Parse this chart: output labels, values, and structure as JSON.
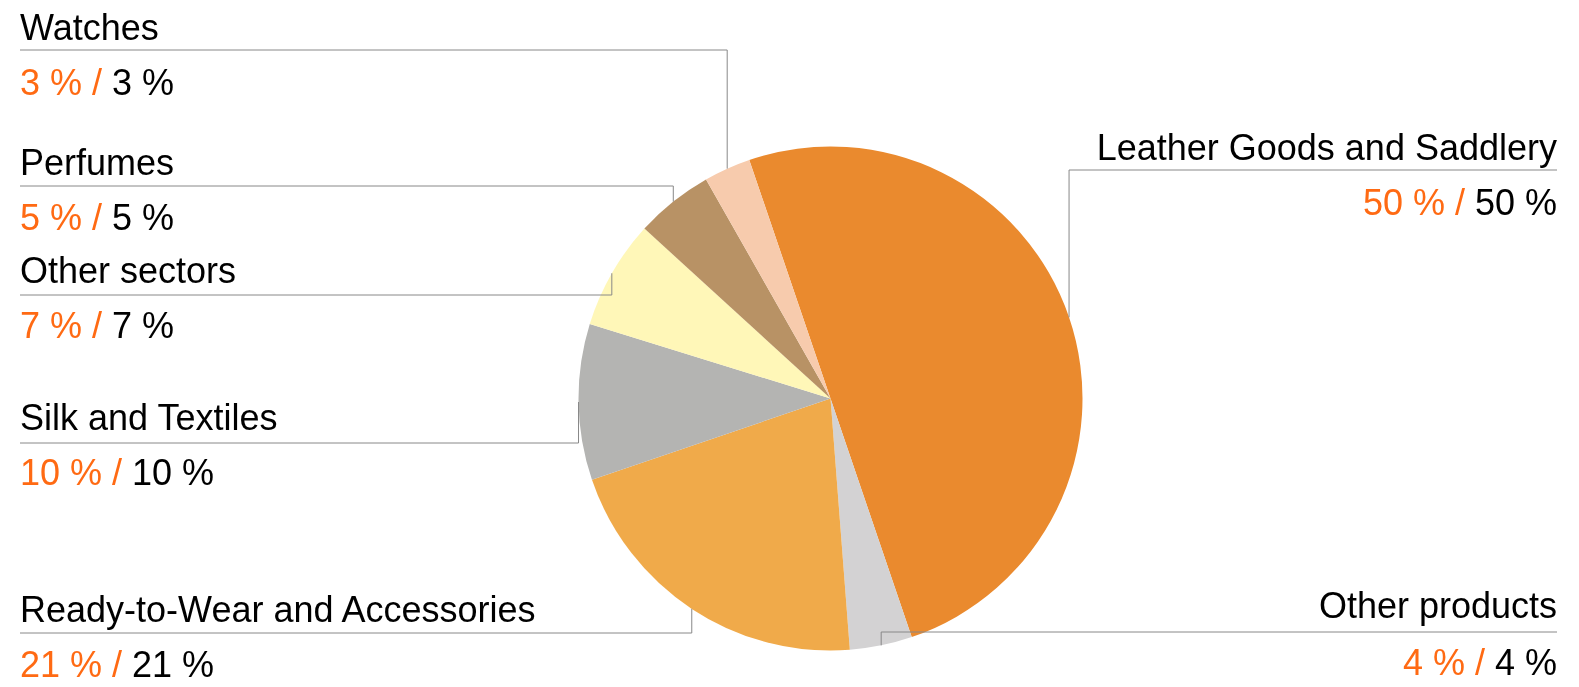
{
  "chart_data": {
    "type": "pie",
    "categories": [
      "Leather Goods and Saddlery",
      "Other products",
      "Ready-to-Wear and Accessories",
      "Silk and Textiles",
      "Other sectors",
      "Perfumes",
      "Watches"
    ],
    "values": [
      50,
      4,
      21,
      10,
      7,
      5,
      3
    ],
    "colors": [
      "#ea8a2e",
      "#d3d2d3",
      "#f0aa4a",
      "#b4b4b2",
      "#fff7b8",
      "#b89265",
      "#f7cbad"
    ],
    "value_labels": [
      "50 % / 50 %",
      "4 % / 4 %",
      "21 % / 21 %",
      "10 % / 10 %",
      "7 % / 7 %",
      "5 % / 5 %",
      "3 % / 3 %"
    ]
  }
}
